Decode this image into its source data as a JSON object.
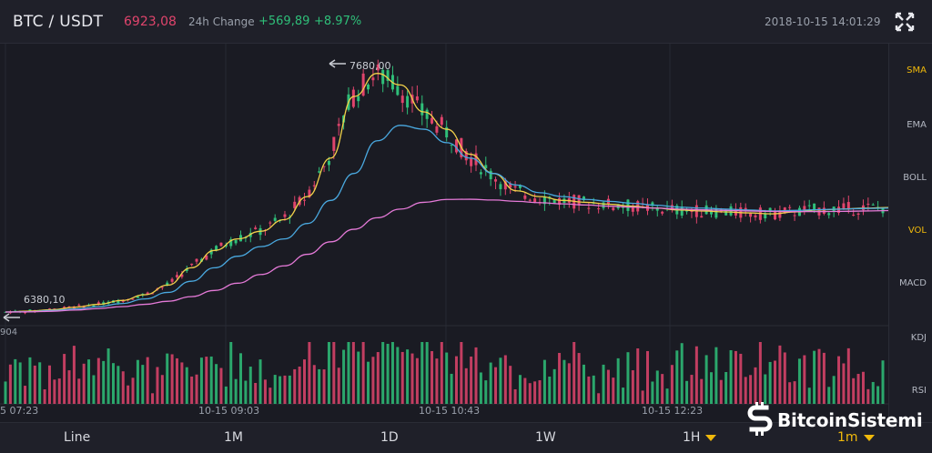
{
  "header": {
    "pair": "BTC / USDT",
    "last_price": "6923,08",
    "change_label": "24h Change",
    "change_abs": "+569,89",
    "change_pct": "+8.97%",
    "datetime": "2018-10-15 14:01:29",
    "expand_icon": "expand-icon"
  },
  "indicators": [
    "SMA",
    "EMA",
    "BOLL",
    "VOL",
    "MACD",
    "KDJ",
    "RSI"
  ],
  "active_indicators": [
    "SMA",
    "VOL"
  ],
  "timeframes": [
    "Line",
    "1M",
    "1D",
    "1W",
    "1H",
    "1m"
  ],
  "active_timeframe": "1m",
  "volume_label": "904",
  "annotations": {
    "high": "7680,00",
    "low": "6380,10"
  },
  "x_axis_labels": [
    "5 07:23",
    "10-15 09:03",
    "10-15 10:43",
    "10-15 12:23"
  ],
  "watermark": {
    "text": "BitcoinSistemi",
    "logo": "bitcoin-s-logo"
  },
  "colors": {
    "up": "#2fbf79",
    "down": "#e0446c",
    "ma_fast": "#f2d14a",
    "ma_mid": "#4aa9e0",
    "ma_slow": "#e57ad8",
    "accent": "#f0b90b"
  },
  "chart_data": {
    "type": "line",
    "title": "",
    "y_range": [
      6380.1,
      7680.0
    ],
    "x_ticks": [
      "5 07:23",
      "10-15 09:03",
      "10-15 10:43",
      "10-15 12:23"
    ],
    "series": [
      {
        "values": [
          6380,
          6385,
          6392,
          6405,
          6420,
          6440,
          6470,
          6520,
          6610,
          6700,
          6760,
          6800,
          6860,
          6980,
          7180,
          7500,
          7620,
          7560,
          7420,
          7330,
          7200,
          7100,
          7010,
          6980,
          6960,
          6950,
          6940,
          6930,
          6920,
          6910,
          6905,
          6900,
          6895,
          6890,
          6900,
          6910,
          6915,
          6920,
          6923
        ]
      },
      {
        "values": [
          6380,
          6382,
          6388,
          6396,
          6408,
          6424,
          6448,
          6482,
          6540,
          6610,
          6670,
          6720,
          6760,
          6840,
          6960,
          7100,
          7270,
          7350,
          7330,
          7260,
          7180,
          7100,
          7040,
          7000,
          6980,
          6965,
          6955,
          6945,
          6935,
          6925,
          6920,
          6915,
          6910,
          6905,
          6908,
          6912,
          6915,
          6918,
          6920
        ]
      },
      {
        "values": [
          6380,
          6381,
          6384,
          6390,
          6398,
          6408,
          6420,
          6436,
          6460,
          6492,
          6530,
          6575,
          6620,
          6680,
          6745,
          6810,
          6870,
          6915,
          6950,
          6965,
          6966,
          6962,
          6955,
          6948,
          6942,
          6936,
          6930,
          6925,
          6920,
          6915,
          6911,
          6908,
          6905,
          6903,
          6902,
          6902,
          6903,
          6905,
          6907
        ]
      }
    ]
  }
}
